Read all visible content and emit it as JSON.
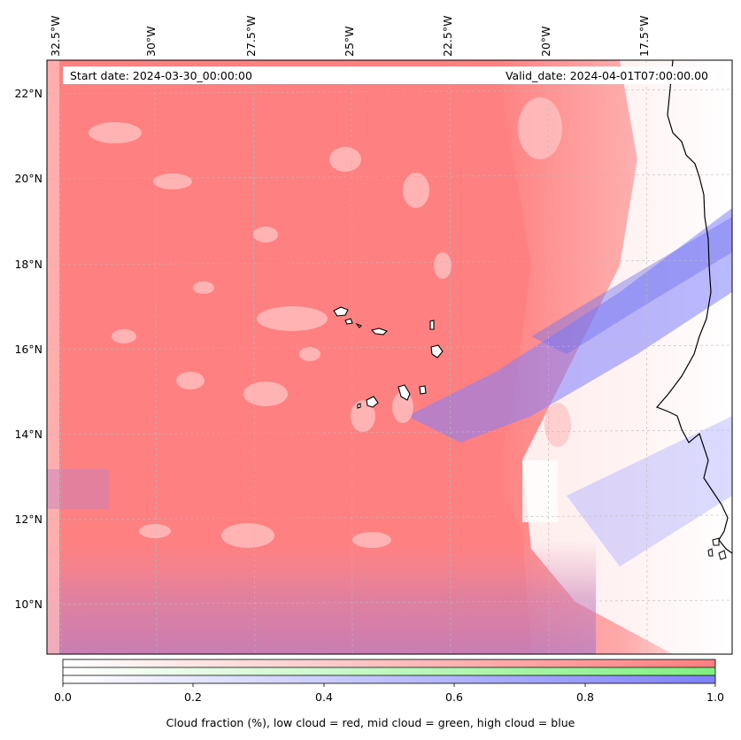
{
  "header": {
    "start_date": "Start date: 2024-03-30_00:00:00",
    "valid_date": "Valid_date: 2024-04-01T07:00:00.00"
  },
  "lon_labels": [
    "32.5°W",
    "30°W",
    "27.5°W",
    "25°W",
    "22.5°W",
    "20°W",
    "17.5°W"
  ],
  "lat_labels": [
    "22°N",
    "20°N",
    "18°N",
    "16°N",
    "14°N",
    "12°N",
    "10°N"
  ],
  "colorbar": {
    "ticks": [
      "0.0",
      "0.2",
      "0.4",
      "0.6",
      "0.8",
      "1.0"
    ],
    "label": "Cloud fraction (%), low cloud = red, mid cloud = green, high cloud = blue",
    "colors": {
      "low": "#ff7f7f",
      "mid": "#80f080",
      "high": "#8080ff"
    }
  },
  "colors": {
    "coastline": "#000000",
    "grid": "#bbbbbb"
  }
}
